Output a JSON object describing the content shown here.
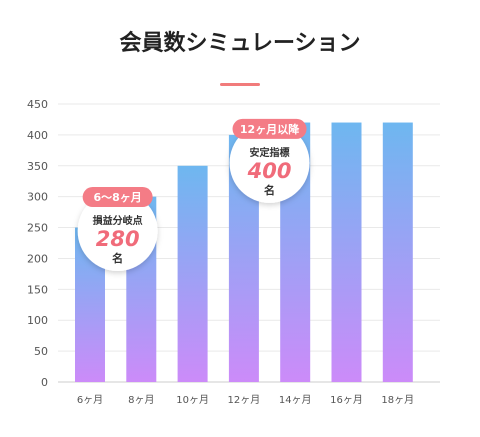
{
  "title": "会員数シミュレーション",
  "colors": {
    "accent": "#f17b7b",
    "bar_top": "#6eb7f0",
    "bar_bottom": "#cc8bf9",
    "grid": "#e9e9e9",
    "axis": "#cccccc",
    "callout_pill": "#f47c86",
    "callout_value": "#f06b7a"
  },
  "chart_data": {
    "type": "bar",
    "title": "会員数シミュレーション",
    "xlabel": "",
    "ylabel": "",
    "categories": [
      "6ヶ月",
      "8ヶ月",
      "10ヶ月",
      "12ヶ月",
      "14ヶ月",
      "16ヶ月",
      "18ヶ月"
    ],
    "values": [
      250,
      300,
      350,
      400,
      420,
      420,
      420
    ],
    "ylim": [
      0,
      450
    ],
    "yticks": [
      0,
      50,
      100,
      150,
      200,
      250,
      300,
      350,
      400,
      450
    ],
    "grid": true,
    "legend": "none",
    "annotations": [
      {
        "label": "6〜8ヶ月",
        "caption": "損益分岐点",
        "value": "280",
        "unit": "名",
        "between": [
          "6ヶ月",
          "8ヶ月"
        ],
        "y": 280
      },
      {
        "label": "12ヶ月以降",
        "caption": "安定指標",
        "value": "400",
        "unit": "名",
        "between": [
          "12ヶ月",
          "14ヶ月"
        ],
        "y": 400
      }
    ]
  }
}
